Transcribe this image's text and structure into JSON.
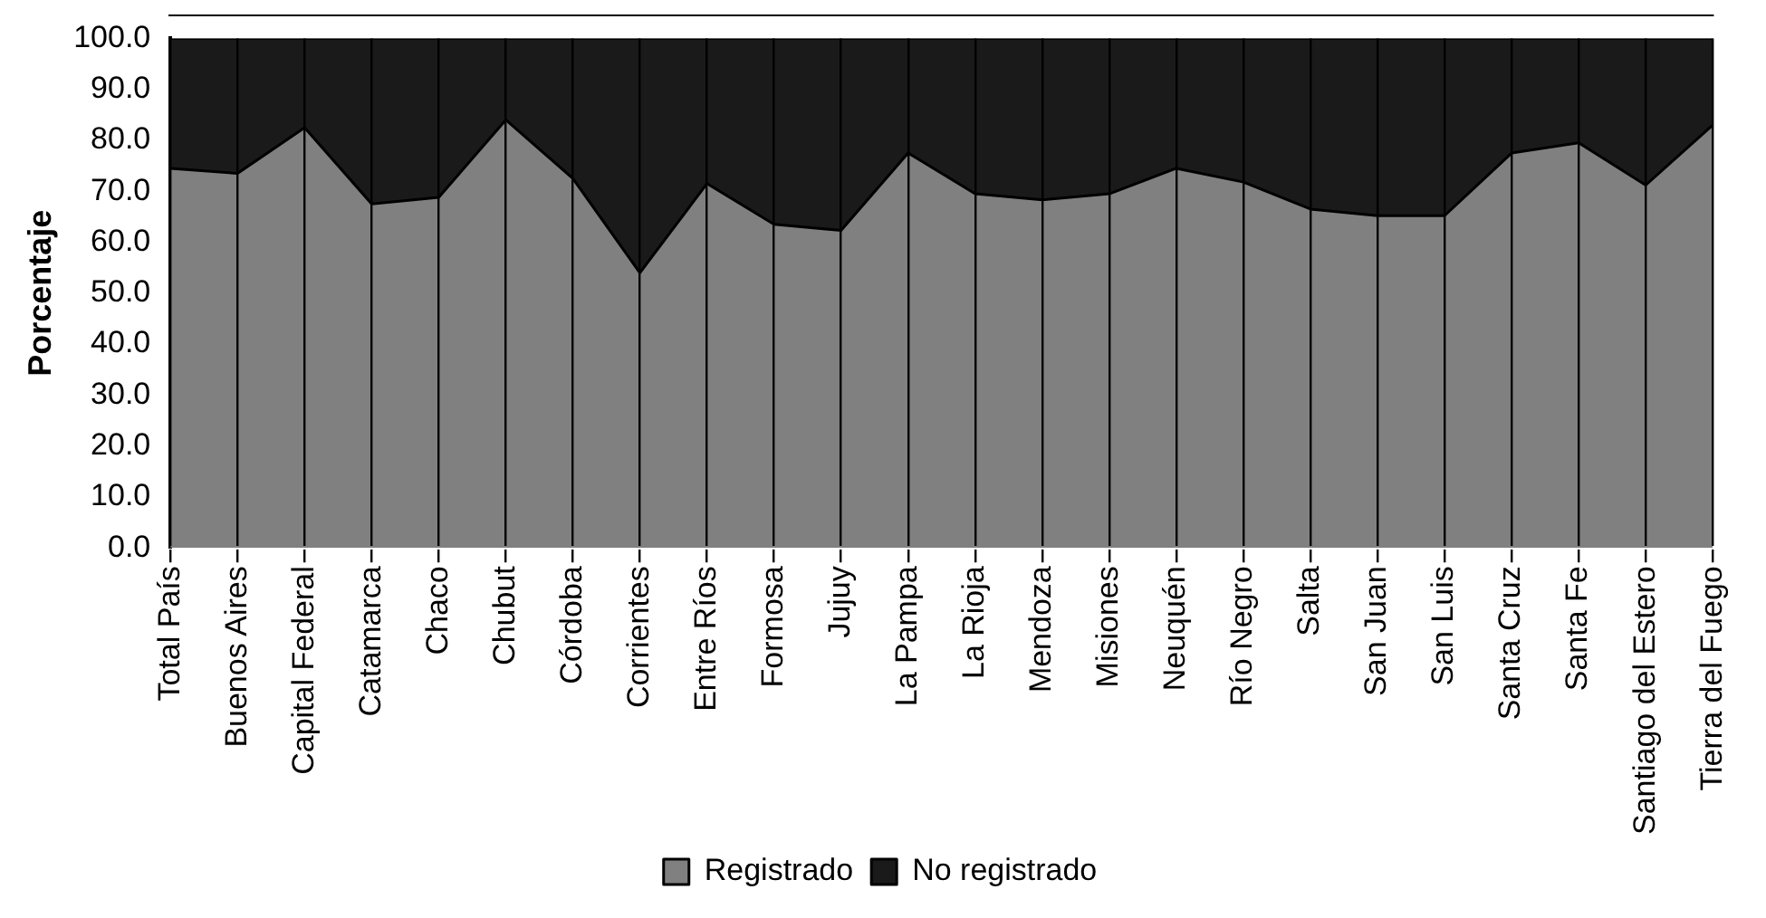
{
  "chart_data": {
    "type": "area",
    "stacked": true,
    "ylabel": "Porcentaje",
    "categories": [
      "Total País",
      "Buenos Aires",
      "Capital Federal",
      "Catamarca",
      "Chaco",
      "Chubut",
      "Córdoba",
      "Corrientes",
      "Entre Ríos",
      "Formosa",
      "Jujuy",
      "La Pampa",
      "La Rioja",
      "Mendoza",
      "Misiones",
      "Neuquén",
      "Río Negro",
      "Salta",
      "San Juan",
      "San Luis",
      "Santa Cruz",
      "Santa Fe",
      "Santiago del Estero",
      "Tierra del Fuego"
    ],
    "series": [
      {
        "name": "Registrado",
        "color": "#808080",
        "values": [
          74.5,
          73.5,
          82.5,
          67.5,
          68.8,
          84,
          72.5,
          54,
          71.5,
          63.5,
          62.3,
          77.5,
          69.5,
          68.3,
          69.5,
          74.5,
          71.8,
          66.5,
          65.2,
          65.2,
          77.5,
          79.5,
          71.2,
          83
        ]
      },
      {
        "name": "No registrado",
        "color": "#1a1a1a",
        "values": [
          25.5,
          26.5,
          17.5,
          32.5,
          31.2,
          16,
          27.5,
          46,
          28.5,
          36.5,
          37.7,
          22.5,
          30.5,
          31.7,
          30.5,
          25.5,
          28.2,
          33.5,
          34.8,
          34.8,
          22.5,
          20.5,
          28.8,
          17
        ]
      }
    ],
    "ylim": [
      0,
      100
    ],
    "yticks": [
      {
        "value": 0,
        "label": "0.0"
      },
      {
        "value": 10,
        "label": "10.0"
      },
      {
        "value": 20,
        "label": "20.0"
      },
      {
        "value": 30,
        "label": "30.0"
      },
      {
        "value": 40,
        "label": "40.0"
      },
      {
        "value": 50,
        "label": "50.0"
      },
      {
        "value": 60,
        "label": "60.0"
      },
      {
        "value": 70,
        "label": "70.0"
      },
      {
        "value": 80,
        "label": "80.0"
      },
      {
        "value": 90,
        "label": "90.0"
      },
      {
        "value": 100,
        "label": "100.0"
      }
    ],
    "grid": "x",
    "legend": "bottom"
  }
}
